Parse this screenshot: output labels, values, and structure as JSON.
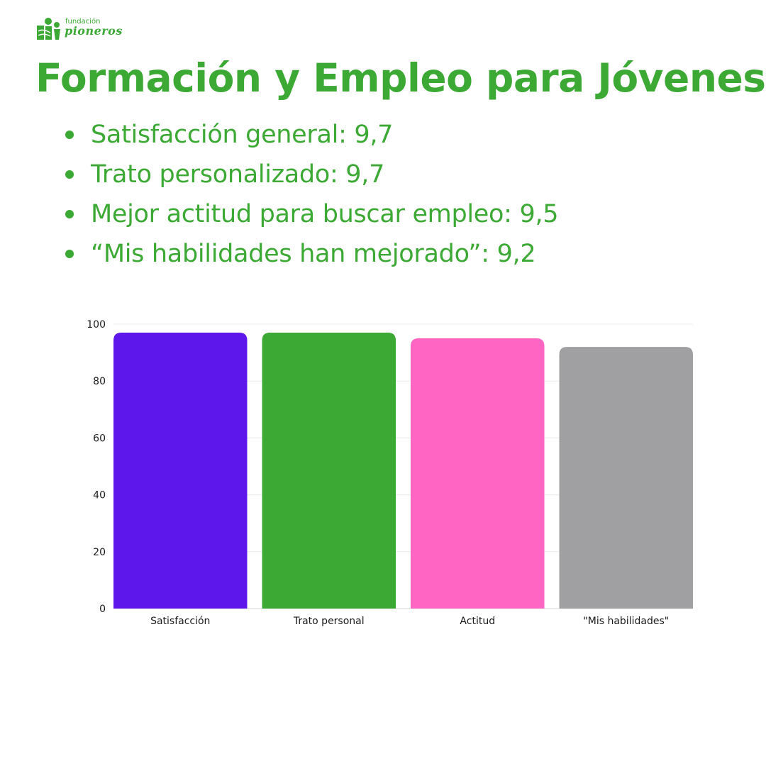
{
  "logo": {
    "top_text": "fundación",
    "bottom_text": "pioneros",
    "icon": "pioneros-logo-icon"
  },
  "title": "Formación y Empleo para Jóvenes",
  "bullets": [
    "Satisfacción general: 9,7",
    "Trato personalizado: 9,7",
    "Mejor actitud para buscar empleo: 9,5",
    "“Mis habilidades han mejorado”: 9,2"
  ],
  "colors": {
    "brand_green": "#3da935"
  },
  "chart_data": {
    "type": "bar",
    "categories": [
      "Satisfacción",
      "Trato personal",
      "Actitud",
      "\"Mis habilidades\""
    ],
    "values": [
      97,
      97,
      95,
      92
    ],
    "bar_colors": [
      "#5e17eb",
      "#3da935",
      "#ff66c4",
      "#a09fa1"
    ],
    "title": "",
    "xlabel": "",
    "ylabel": "",
    "ylim": [
      0,
      100
    ],
    "yticks": [
      0,
      20,
      40,
      60,
      80,
      100
    ],
    "grid": true
  }
}
